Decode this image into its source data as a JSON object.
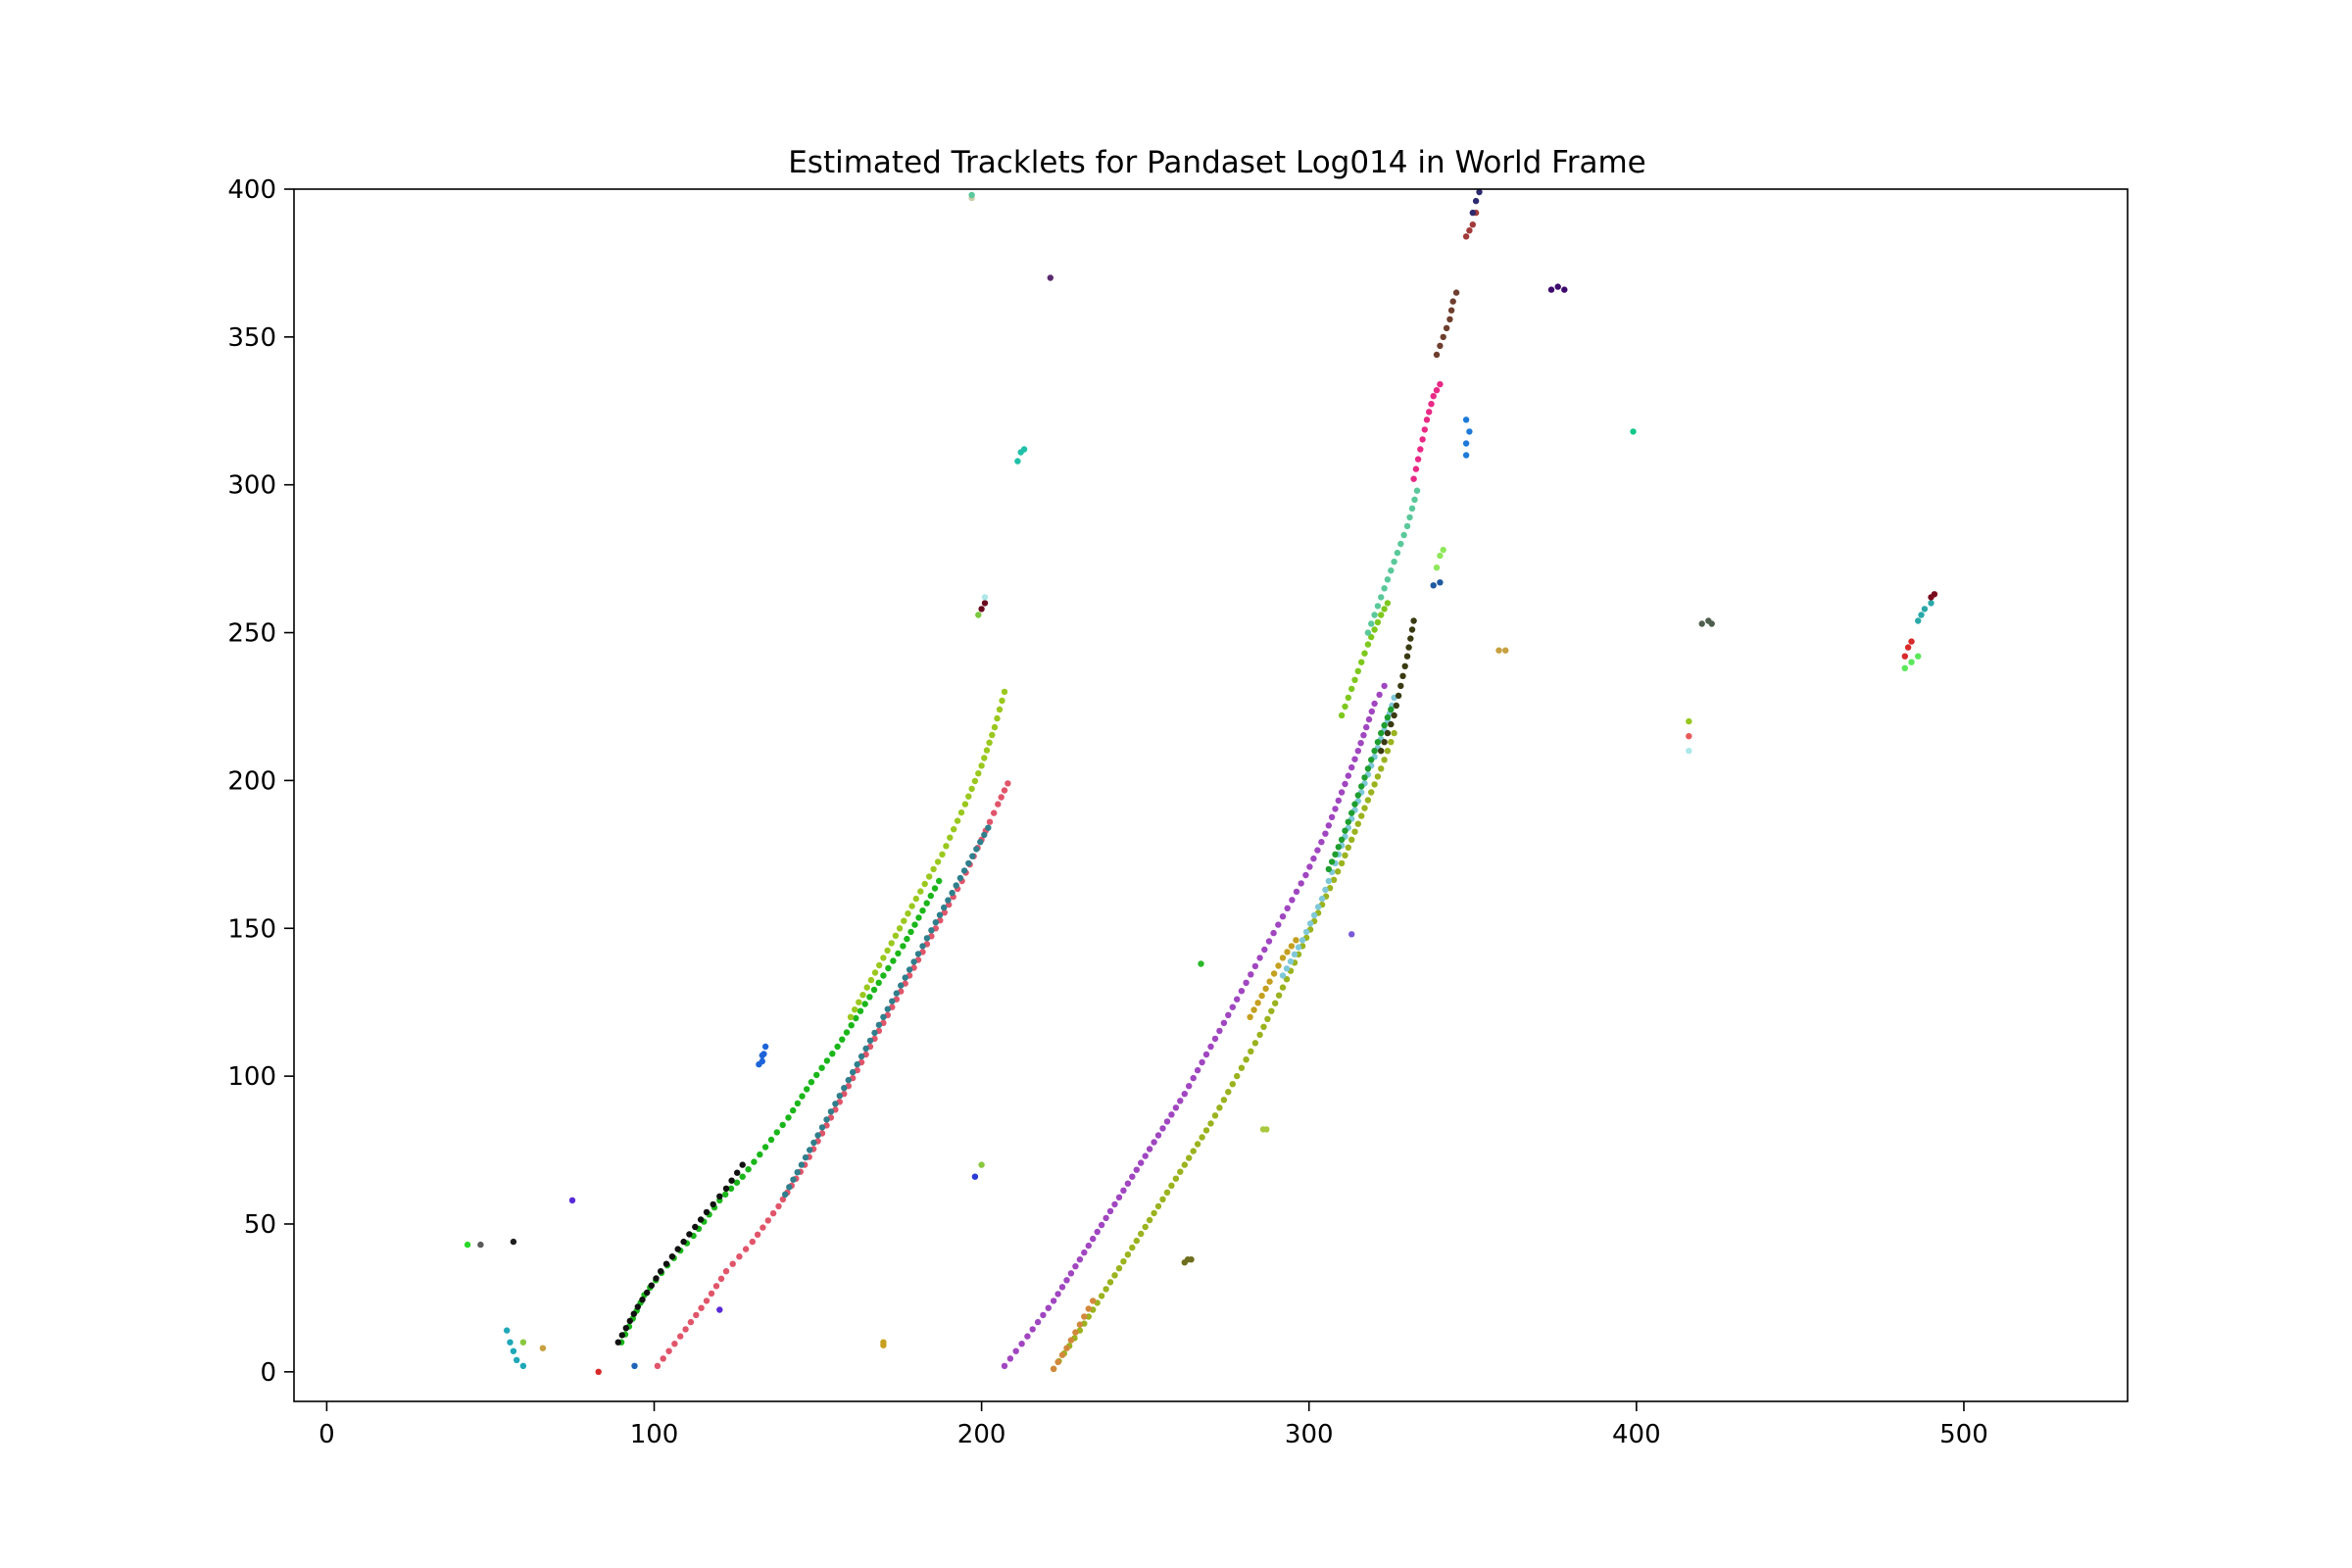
{
  "chart_data": {
    "type": "scatter",
    "title": "Estimated Tracklets for Pandaset Log014 in World Frame",
    "xlabel": "",
    "ylabel": "",
    "xlim": [
      -10,
      550
    ],
    "ylim": [
      -10,
      400
    ],
    "x_ticks": [
      0,
      100,
      200,
      300,
      400,
      500
    ],
    "y_ticks": [
      0,
      50,
      100,
      150,
      200,
      250,
      300,
      350,
      400
    ],
    "grid": false,
    "legend": "none",
    "tracklets": [
      {
        "color": "#1ab61a",
        "points": [
          [
            90,
            10
          ],
          [
            97,
            26
          ],
          [
            104,
            36
          ],
          [
            112,
            46
          ],
          [
            120,
            58
          ],
          [
            127,
            66
          ],
          [
            134,
            76
          ],
          [
            141,
            86
          ],
          [
            148,
            98
          ],
          [
            156,
            110
          ],
          [
            163,
            122
          ],
          [
            170,
            134
          ],
          [
            176,
            144
          ],
          [
            182,
            156
          ],
          [
            187,
            166
          ]
        ]
      },
      {
        "color": "#111111",
        "points": [
          [
            89,
            10
          ],
          [
            95,
            22
          ],
          [
            102,
            34
          ],
          [
            109,
            44
          ],
          [
            116,
            54
          ],
          [
            122,
            62
          ],
          [
            127,
            70
          ]
        ]
      },
      {
        "color": "#9ac81e",
        "points": [
          [
            160,
            120
          ],
          [
            170,
            140
          ],
          [
            180,
            160
          ],
          [
            188,
            175
          ],
          [
            195,
            192
          ],
          [
            200,
            205
          ],
          [
            204,
            218
          ],
          [
            207,
            230
          ]
        ]
      },
      {
        "color": "#e0556a",
        "points": [
          [
            101,
            2
          ],
          [
            108,
            12
          ],
          [
            116,
            24
          ],
          [
            122,
            34
          ],
          [
            130,
            44
          ],
          [
            138,
            56
          ],
          [
            146,
            70
          ],
          [
            154,
            86
          ],
          [
            162,
            102
          ],
          [
            170,
            118
          ],
          [
            178,
            134
          ],
          [
            186,
            150
          ],
          [
            194,
            166
          ],
          [
            200,
            180
          ],
          [
            205,
            192
          ],
          [
            208,
            199
          ]
        ]
      },
      {
        "color": "#2f7f8c",
        "points": [
          [
            140,
            60
          ],
          [
            150,
            80
          ],
          [
            162,
            104
          ],
          [
            174,
            128
          ],
          [
            186,
            152
          ],
          [
            196,
            172
          ],
          [
            202,
            184
          ]
        ]
      },
      {
        "color": "#a046c0",
        "points": [
          [
            207,
            2
          ],
          [
            214,
            12
          ],
          [
            222,
            24
          ],
          [
            230,
            38
          ],
          [
            238,
            52
          ],
          [
            246,
            66
          ],
          [
            254,
            80
          ],
          [
            262,
            94
          ],
          [
            270,
            110
          ],
          [
            278,
            126
          ],
          [
            285,
            140
          ],
          [
            292,
            154
          ],
          [
            299,
            168
          ],
          [
            305,
            182
          ],
          [
            310,
            196
          ],
          [
            315,
            210
          ],
          [
            320,
            226
          ],
          [
            323,
            232
          ]
        ]
      },
      {
        "color": "#9ab31e",
        "points": [
          [
            222,
            1
          ],
          [
            230,
            14
          ],
          [
            238,
            28
          ],
          [
            246,
            42
          ],
          [
            254,
            56
          ],
          [
            262,
            70
          ],
          [
            270,
            84
          ],
          [
            278,
            100
          ],
          [
            285,
            114
          ],
          [
            292,
            130
          ],
          [
            298,
            144
          ],
          [
            304,
            158
          ],
          [
            310,
            172
          ],
          [
            316,
            188
          ],
          [
            322,
            204
          ],
          [
            326,
            216
          ]
        ]
      },
      {
        "color": "#d2883c",
        "points": [
          [
            222,
            1
          ],
          [
            226,
            8
          ],
          [
            230,
            16
          ],
          [
            234,
            24
          ]
        ]
      },
      {
        "color": "#c4a020",
        "points": [
          [
            282,
            120
          ],
          [
            288,
            132
          ],
          [
            292,
            140
          ],
          [
            296,
            146
          ]
        ]
      },
      {
        "color": "#7fc8d8",
        "points": [
          [
            292,
            134
          ],
          [
            298,
            146
          ],
          [
            304,
            160
          ],
          [
            308,
            172
          ],
          [
            312,
            184
          ],
          [
            316,
            196
          ],
          [
            320,
            208
          ],
          [
            324,
            220
          ],
          [
            326,
            228
          ]
        ]
      },
      {
        "color": "#1e9e2e",
        "points": [
          [
            306,
            170
          ],
          [
            310,
            180
          ],
          [
            314,
            192
          ],
          [
            318,
            204
          ],
          [
            322,
            216
          ],
          [
            325,
            224
          ]
        ]
      },
      {
        "color": "#3a3a12",
        "points": [
          [
            322,
            210
          ],
          [
            326,
            222
          ],
          [
            328,
            232
          ],
          [
            330,
            242
          ],
          [
            332,
            254
          ]
        ]
      },
      {
        "color": "#7ec81e",
        "points": [
          [
            310,
            222
          ],
          [
            314,
            234
          ],
          [
            318,
            246
          ],
          [
            322,
            256
          ],
          [
            324,
            260
          ]
        ]
      },
      {
        "color": "#5ac89a",
        "points": [
          [
            318,
            250
          ],
          [
            322,
            262
          ],
          [
            326,
            274
          ],
          [
            330,
            286
          ],
          [
            333,
            298
          ]
        ]
      },
      {
        "color": "#e82a86",
        "points": [
          [
            332,
            302
          ],
          [
            334,
            312
          ],
          [
            336,
            322
          ],
          [
            338,
            330
          ],
          [
            340,
            334
          ]
        ]
      },
      {
        "color": "#1e7ad8",
        "points": [
          [
            348,
            310
          ],
          [
            348,
            314
          ],
          [
            349,
            318
          ],
          [
            348,
            322
          ]
        ]
      },
      {
        "color": "#6e3e2e",
        "points": [
          [
            339,
            344
          ],
          [
            341,
            350
          ],
          [
            343,
            356
          ],
          [
            344,
            362
          ],
          [
            345,
            365
          ]
        ]
      },
      {
        "color": "#a23a3a",
        "points": [
          [
            348,
            384
          ],
          [
            350,
            388
          ],
          [
            351,
            392
          ]
        ]
      },
      {
        "color": "#2e2a6e",
        "points": [
          [
            350,
            392
          ],
          [
            351,
            396
          ],
          [
            352,
            399
          ]
        ]
      },
      {
        "color": "#3e0a6e",
        "points": [
          [
            374,
            366
          ],
          [
            376,
            367
          ],
          [
            378,
            366
          ]
        ]
      },
      {
        "color": "#10c88a",
        "points": [
          [
            399,
            318
          ]
        ]
      },
      {
        "color": "#8ee85a",
        "points": [
          [
            339,
            272
          ],
          [
            340,
            276
          ],
          [
            341,
            278
          ]
        ]
      },
      {
        "color": "#1e5aa0",
        "points": [
          [
            338,
            266
          ],
          [
            340,
            267
          ]
        ]
      },
      {
        "color": "#c8a040",
        "points": [
          [
            358,
            244
          ],
          [
            360,
            244
          ]
        ]
      },
      {
        "color": "#4e5e4e",
        "points": [
          [
            420,
            253
          ],
          [
            422,
            254
          ],
          [
            423,
            253
          ]
        ]
      },
      {
        "color": "#96c81e",
        "points": [
          [
            416,
            220
          ]
        ]
      },
      {
        "color": "#e85a5a",
        "points": [
          [
            416,
            215
          ]
        ]
      },
      {
        "color": "#aee8e8",
        "points": [
          [
            416,
            210
          ]
        ]
      },
      {
        "color": "#d82a2a",
        "points": [
          [
            482,
            242
          ],
          [
            483,
            245
          ],
          [
            484,
            247
          ]
        ]
      },
      {
        "color": "#5ae85a",
        "points": [
          [
            482,
            238
          ],
          [
            484,
            240
          ],
          [
            486,
            242
          ]
        ]
      },
      {
        "color": "#2aa8a8",
        "points": [
          [
            486,
            254
          ],
          [
            488,
            258
          ],
          [
            490,
            260
          ]
        ]
      },
      {
        "color": "#7a0a1e",
        "points": [
          [
            490,
            262
          ],
          [
            491,
            263
          ]
        ]
      },
      {
        "color": "#1e64d8",
        "points": [
          [
            132,
            104
          ],
          [
            133,
            107
          ],
          [
            134,
            110
          ],
          [
            133,
            105
          ]
        ]
      },
      {
        "color": "#5a2a6e",
        "points": [
          [
            221,
            370
          ]
        ]
      },
      {
        "color": "#20c0a8",
        "points": [
          [
            211,
            308
          ],
          [
            212,
            311
          ],
          [
            213,
            312
          ]
        ]
      },
      {
        "color": "#6a0a1e",
        "points": [
          [
            200,
            258
          ],
          [
            201,
            260
          ]
        ]
      },
      {
        "color": "#7ac83e",
        "points": [
          [
            199,
            256
          ]
        ]
      },
      {
        "color": "#aee8e8",
        "points": [
          [
            201,
            262
          ]
        ]
      },
      {
        "color": "#7a5ad8",
        "points": [
          [
            313,
            148
          ]
        ]
      },
      {
        "color": "#2ab82a",
        "points": [
          [
            267,
            138
          ]
        ]
      },
      {
        "color": "#a8c83e",
        "points": [
          [
            286,
            82
          ],
          [
            287,
            82
          ]
        ]
      },
      {
        "color": "#6e6e1e",
        "points": [
          [
            262,
            37
          ],
          [
            263,
            38
          ],
          [
            264,
            38
          ]
        ]
      },
      {
        "color": "#2a3ad8",
        "points": [
          [
            198,
            66
          ]
        ]
      },
      {
        "color": "#8ac83e",
        "points": [
          [
            200,
            70
          ]
        ]
      },
      {
        "color": "#5a2ad8",
        "points": [
          [
            75,
            58
          ]
        ]
      },
      {
        "color": "#2ad82a",
        "points": [
          [
            43,
            43
          ]
        ]
      },
      {
        "color": "#5a5a5a",
        "points": [
          [
            47,
            43
          ]
        ]
      },
      {
        "color": "#1e1e1e",
        "points": [
          [
            57,
            44
          ]
        ]
      },
      {
        "color": "#1ea8b8",
        "points": [
          [
            55,
            14
          ],
          [
            56,
            10
          ],
          [
            57,
            7
          ],
          [
            58,
            4
          ],
          [
            60,
            2
          ]
        ]
      },
      {
        "color": "#8ac83e",
        "points": [
          [
            60,
            10
          ]
        ]
      },
      {
        "color": "#c8a040",
        "points": [
          [
            66,
            8
          ]
        ]
      },
      {
        "color": "#d82a2a",
        "points": [
          [
            83,
            0
          ]
        ]
      },
      {
        "color": "#1e64b8",
        "points": [
          [
            94,
            2
          ]
        ]
      },
      {
        "color": "#5a2ad8",
        "points": [
          [
            120,
            21
          ]
        ]
      },
      {
        "color": "#c8a020",
        "points": [
          [
            170,
            9
          ],
          [
            170,
            10
          ]
        ]
      },
      {
        "color": "#ccccaa",
        "points": [
          [
            197,
            397
          ]
        ]
      },
      {
        "color": "#5ac89a",
        "points": [
          [
            197,
            398
          ]
        ]
      }
    ]
  }
}
